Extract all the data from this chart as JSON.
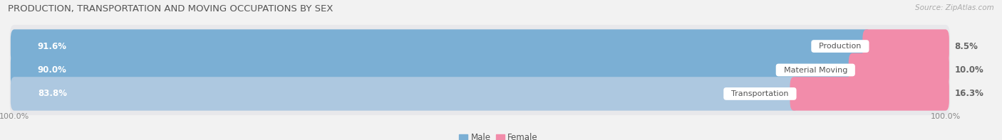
{
  "title": "PRODUCTION, TRANSPORTATION AND MOVING OCCUPATIONS BY SEX",
  "source": "Source: ZipAtlas.com",
  "categories": [
    "Production",
    "Material Moving",
    "Transportation"
  ],
  "male_values": [
    91.6,
    90.0,
    83.8
  ],
  "female_values": [
    8.5,
    10.0,
    16.3
  ],
  "male_color": "#7bafd4",
  "female_color": "#f28caa",
  "male_color_light": "#adc8e0",
  "title_fontsize": 9.5,
  "bar_fontsize": 8.5,
  "female_label_fontsize": 8.5,
  "legend_fontsize": 8.5,
  "axis_label_fontsize": 8,
  "bar_height": 0.62,
  "row_bg_color": "#e8e8eb",
  "fig_bg_color": "#f2f2f2",
  "gap_color": "#f2f2f2",
  "figsize": [
    14.06,
    1.97
  ],
  "dpi": 100
}
